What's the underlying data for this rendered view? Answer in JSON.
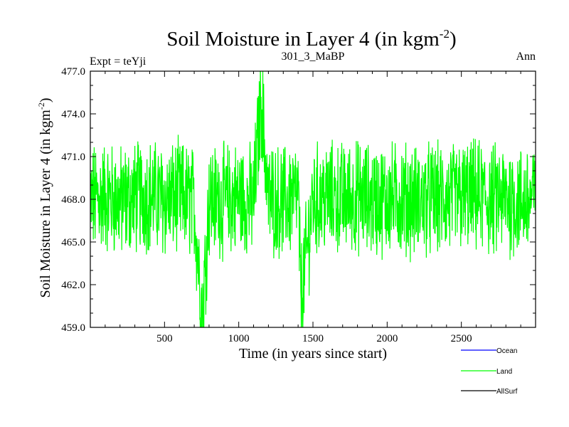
{
  "chart_data": {
    "type": "line",
    "title_main": "Soil Moisture in Layer 4 (in kgm",
    "title_sup": "-2",
    "title_close": ")",
    "subtitle_left": "Expt = teYji",
    "subtitle_center": "301_3_MaBP",
    "subtitle_right": "Ann",
    "xlabel": "Time (in years since start)",
    "ylabel_main": "Soil Moisture in Layer 4 (in kgm",
    "ylabel_sup": "-2",
    "ylabel_close": ")",
    "xlim": [
      0,
      3000
    ],
    "ylim": [
      459.0,
      477.0
    ],
    "x_ticks": [
      500,
      1000,
      1500,
      2000,
      2500
    ],
    "x_tick_labels": [
      "500",
      "1000",
      "1500",
      "2000",
      "2500"
    ],
    "y_ticks": [
      459.0,
      462.0,
      465.0,
      468.0,
      471.0,
      474.0,
      477.0
    ],
    "y_tick_labels": [
      "459.0",
      "462.0",
      "465.0",
      "468.0",
      "471.0",
      "474.0",
      "477.0"
    ],
    "legend_placement": "bottom-right",
    "series": [
      {
        "name": "Ocean",
        "color": "#0000ff",
        "x": [],
        "values": []
      },
      {
        "name": "Land",
        "color": "#00ff00",
        "x": [
          0,
          100,
          200,
          300,
          400,
          500,
          600,
          700,
          755,
          800,
          900,
          1000,
          1100,
          1150,
          1200,
          1300,
          1400,
          1420,
          1500,
          1600,
          1700,
          1800,
          1900,
          2000,
          2100,
          2200,
          2300,
          2400,
          2500,
          2600,
          2700,
          2800,
          2900,
          3000
        ],
        "values": [
          467.9,
          468.2,
          467.8,
          468.1,
          468.3,
          467.9,
          468.2,
          467.7,
          459.8,
          468.0,
          467.9,
          468.1,
          467.8,
          475.2,
          468.0,
          467.8,
          468.2,
          461.0,
          467.9,
          468.1,
          468.0,
          468.2,
          467.9,
          468.0,
          468.1,
          467.8,
          468.0,
          467.9,
          468.1,
          468.2,
          467.9,
          468.0,
          467.8,
          468.1
        ]
      },
      {
        "name": "AllSurf",
        "color": "#000000",
        "x": [],
        "values": []
      }
    ]
  }
}
